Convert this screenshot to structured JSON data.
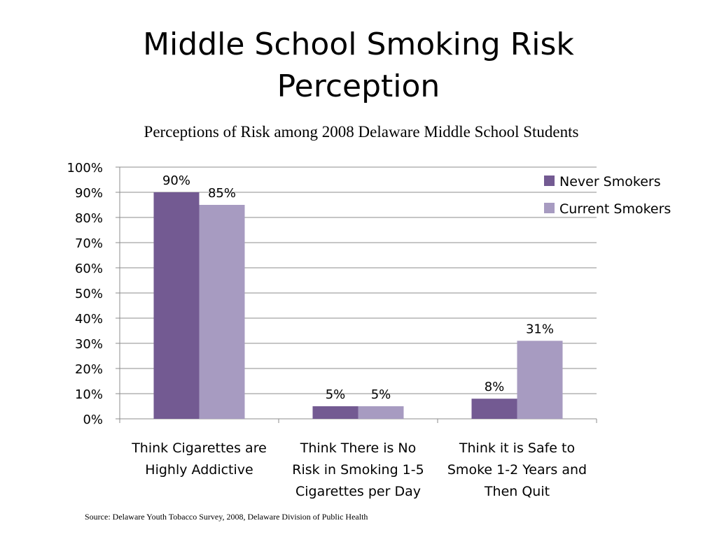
{
  "slide": {
    "title_line1": "Middle School Smoking Risk",
    "title_line2": "Perception",
    "source": "Source: Delaware Youth Tobacco Survey, 2008, Delaware Division of Public Health"
  },
  "chart_data": {
    "type": "bar",
    "title": "Perceptions of Risk among 2008 Delaware Middle School Students",
    "categories": [
      [
        "Think Cigarettes are",
        "Highly Addictive"
      ],
      [
        "Think There is No",
        "Risk in Smoking 1-5",
        "Cigarettes per Day"
      ],
      [
        "Think it is Safe to",
        "Smoke 1-2 Years and",
        "Then Quit"
      ]
    ],
    "series": [
      {
        "name": "Never Smokers",
        "values": [
          90,
          5,
          8
        ],
        "labels": [
          "90%",
          "5%",
          "8%"
        ],
        "color": "#735a92"
      },
      {
        "name": "Current Smokers",
        "values": [
          85,
          5,
          31
        ],
        "labels": [
          "85%",
          "5%",
          "31%"
        ],
        "color": "#a79bc1"
      }
    ],
    "ylim": [
      0,
      100
    ],
    "yticks": [
      "0%",
      "10%",
      "20%",
      "30%",
      "40%",
      "50%",
      "60%",
      "70%",
      "80%",
      "90%",
      "100%"
    ],
    "grid": true,
    "legend": "top-right",
    "xlabel": "",
    "ylabel": ""
  }
}
